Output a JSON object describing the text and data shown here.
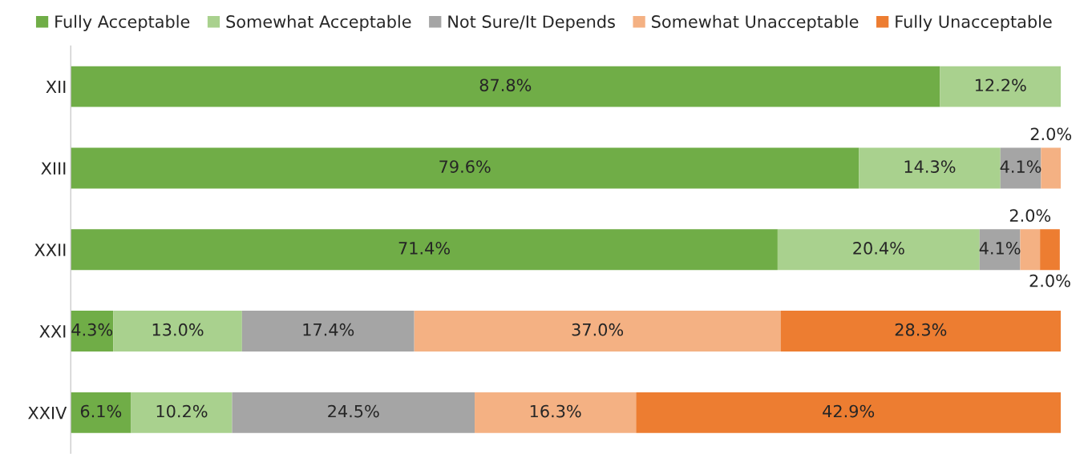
{
  "chart_data": {
    "type": "bar",
    "orientation": "horizontal",
    "stacked": true,
    "categories": [
      "XII",
      "XIII",
      "XXII",
      "XXI",
      "XXIV"
    ],
    "series": [
      {
        "name": "Fully Acceptable",
        "color": "#70ad47",
        "values": [
          87.8,
          79.6,
          71.4,
          4.3,
          6.1
        ],
        "value_labels": [
          "87.8%",
          "79.6%",
          "71.4%",
          "4.3%",
          "6.1%"
        ]
      },
      {
        "name": "Somewhat Acceptable",
        "color": "#a9d18e",
        "values": [
          12.2,
          14.3,
          20.4,
          13.0,
          10.2
        ],
        "value_labels": [
          "12.2%",
          "14.3%",
          "20.4%",
          "13.0%",
          "10.2%"
        ]
      },
      {
        "name": "Not Sure/It Depends",
        "color": "#a5a5a5",
        "values": [
          null,
          4.1,
          4.1,
          17.4,
          24.5
        ],
        "value_labels": [
          null,
          "4.1%",
          "4.1%",
          "17.4%",
          "24.5%"
        ]
      },
      {
        "name": "Somewhat Unacceptable",
        "color": "#f4b183",
        "values": [
          null,
          2.0,
          2.0,
          37.0,
          16.3
        ],
        "value_labels": [
          null,
          "2.0%",
          "2.0%",
          "37.0%",
          "16.3%"
        ]
      },
      {
        "name": "Fully Unacceptable",
        "color": "#ed7d31",
        "values": [
          null,
          null,
          2.0,
          28.3,
          42.9
        ],
        "value_labels": [
          null,
          null,
          "2.0%",
          "28.3%",
          "42.9%"
        ]
      }
    ],
    "xlim": [
      0,
      100
    ],
    "tick_labels": "y",
    "grid": false,
    "legend": "top"
  }
}
